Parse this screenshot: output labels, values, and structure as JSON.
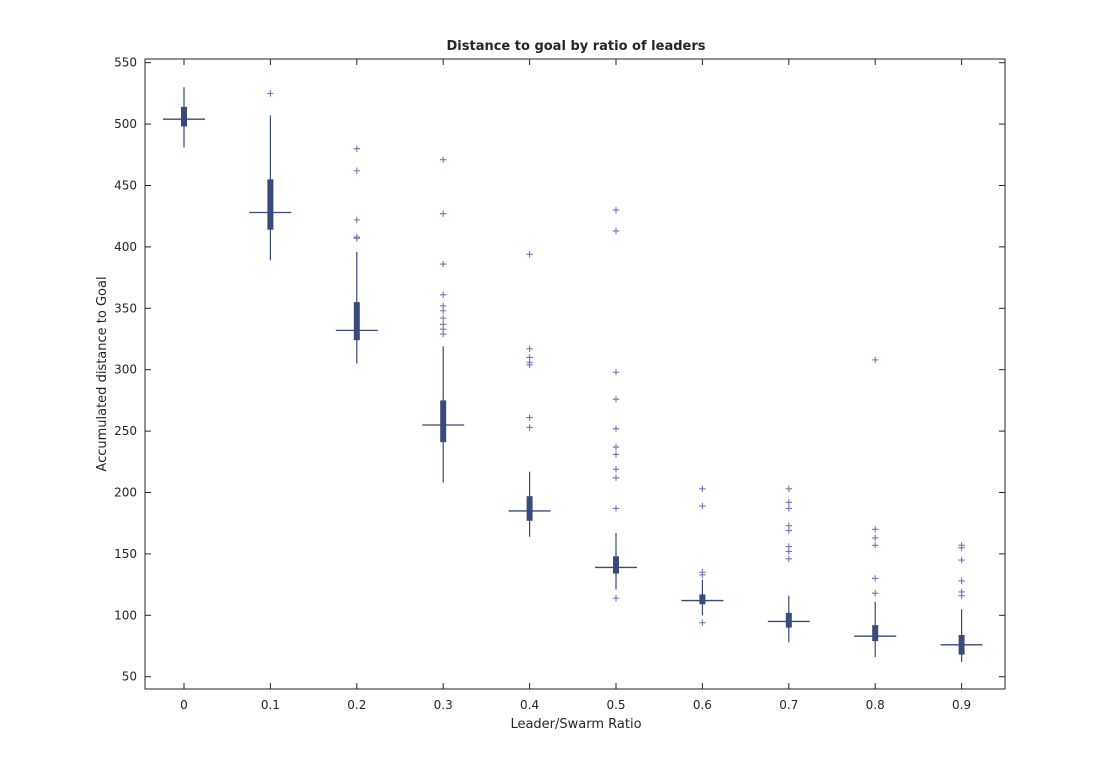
{
  "chart_data": {
    "type": "box",
    "title": "Distance to goal by ratio of leaders",
    "xlabel": "Leader/Swarm Ratio",
    "ylabel": "Accumulated distance to Goal",
    "categories": [
      "0",
      "0.1",
      "0.2",
      "0.3",
      "0.4",
      "0.5",
      "0.6",
      "0.7",
      "0.8",
      "0.9"
    ],
    "ylim": [
      40,
      553
    ],
    "yticks": [
      50,
      100,
      150,
      200,
      250,
      300,
      350,
      400,
      450,
      500,
      550
    ],
    "grid": false,
    "colors": {
      "box": "#3a4a7a",
      "outlier": "#7077b3",
      "axis": "#262626"
    },
    "boxes": [
      {
        "category": "0",
        "whisker_low": 481,
        "q1": 498,
        "median": 504,
        "q3": 514,
        "whisker_high": 530,
        "outliers": []
      },
      {
        "category": "0.1",
        "whisker_low": 389,
        "q1": 414,
        "median": 428,
        "q3": 455,
        "whisker_high": 507,
        "outliers": [
          525
        ]
      },
      {
        "category": "0.2",
        "whisker_low": 305,
        "q1": 324,
        "median": 332,
        "q3": 355,
        "whisker_high": 396,
        "outliers": [
          407,
          408,
          422,
          462,
          480
        ]
      },
      {
        "category": "0.3",
        "whisker_low": 208,
        "q1": 241,
        "median": 255,
        "q3": 275,
        "whisker_high": 319,
        "outliers": [
          329,
          333,
          337,
          342,
          348,
          352,
          361,
          386,
          427,
          471
        ]
      },
      {
        "category": "0.4",
        "whisker_low": 164,
        "q1": 177,
        "median": 185,
        "q3": 197,
        "whisker_high": 217,
        "outliers": [
          253,
          261,
          304,
          306,
          310,
          317,
          394
        ]
      },
      {
        "category": "0.5",
        "whisker_low": 121,
        "q1": 134,
        "median": 139,
        "q3": 148,
        "whisker_high": 167,
        "outliers": [
          114,
          187,
          212,
          219,
          231,
          237,
          252,
          276,
          298,
          413,
          430
        ]
      },
      {
        "category": "0.6",
        "whisker_low": 100,
        "q1": 109,
        "median": 112,
        "q3": 117,
        "whisker_high": 129,
        "outliers": [
          94,
          133,
          135,
          189,
          203
        ]
      },
      {
        "category": "0.7",
        "whisker_low": 78,
        "q1": 90,
        "median": 95,
        "q3": 102,
        "whisker_high": 116,
        "outliers": [
          146,
          152,
          156,
          169,
          173,
          187,
          192,
          203
        ]
      },
      {
        "category": "0.8",
        "whisker_low": 66,
        "q1": 79,
        "median": 83,
        "q3": 92,
        "whisker_high": 111,
        "outliers": [
          118,
          130,
          157,
          163,
          170,
          308
        ]
      },
      {
        "category": "0.9",
        "whisker_low": 62,
        "q1": 68,
        "median": 76,
        "q3": 84,
        "whisker_high": 105,
        "outliers": [
          116,
          119,
          128,
          145,
          155,
          157
        ]
      }
    ]
  }
}
